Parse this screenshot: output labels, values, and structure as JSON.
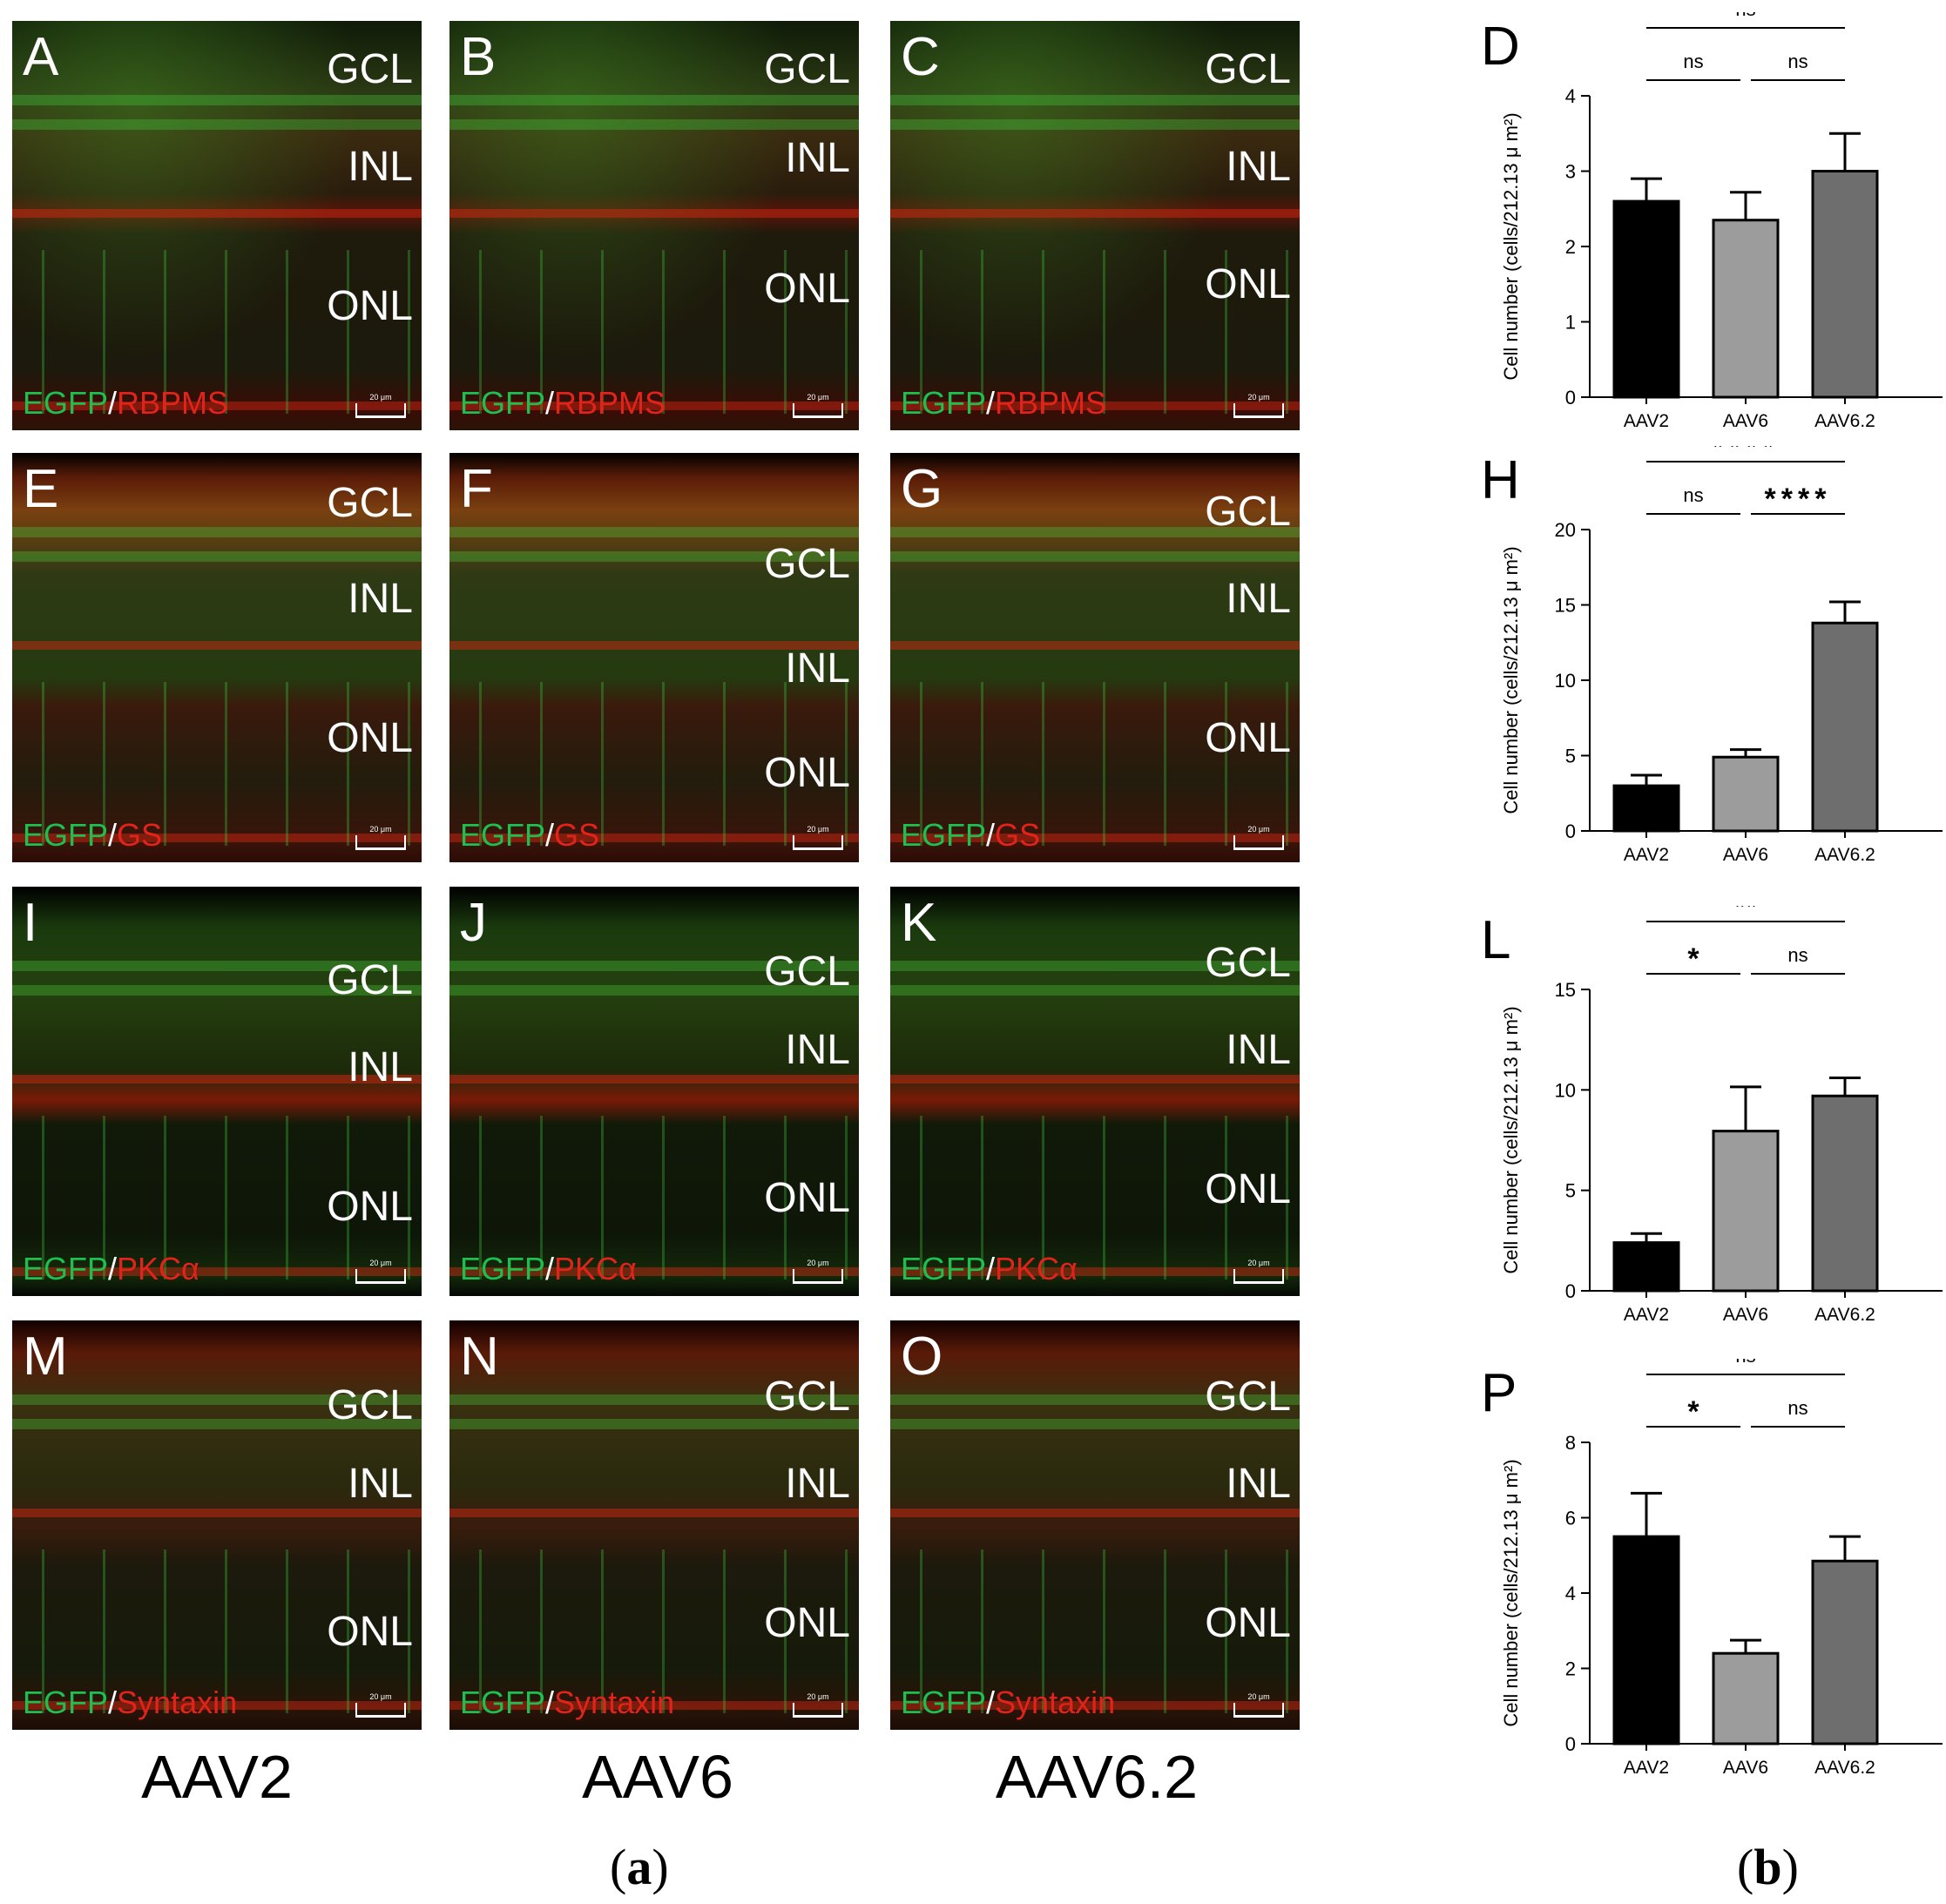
{
  "panels_a": {
    "columns": [
      "AAV2",
      "AAV6",
      "AAV6.2"
    ],
    "stain_prefix": "EGFP",
    "slash": "/",
    "scale_label": "20 μm",
    "rows": [
      {
        "markers": "RBPMS",
        "letters": [
          "A",
          "B",
          "C"
        ],
        "layers": [
          "GCL",
          "INL",
          "ONL"
        ]
      },
      {
        "markers": "GS",
        "letters": [
          "E",
          "F",
          "G"
        ],
        "layers": [
          "GCL",
          "INL",
          "ONL"
        ]
      },
      {
        "markers": "PKCα",
        "letters": [
          "I",
          "J",
          "K"
        ],
        "layers": [
          "GCL",
          "INL",
          "ONL"
        ]
      },
      {
        "markers": "Syntaxin",
        "letters": [
          "M",
          "N",
          "O"
        ],
        "layers": [
          "GCL",
          "INL",
          "ONL"
        ]
      }
    ]
  },
  "fig_labels": {
    "a": "a",
    "b": "b",
    "open": "(",
    "close": ")"
  },
  "colors": {
    "aav2": "#000000",
    "aav6": "#9c9c9c",
    "aav62": "#6e6e6e",
    "egfp": "#1fbf4f",
    "marker": "#e2231a"
  },
  "chart_data": [
    {
      "type": "bar",
      "letter": "D",
      "ylabel": "Cell number (cells/212.13 μ m²)",
      "categories": [
        "AAV2",
        "AAV6",
        "AAV6.2"
      ],
      "values": [
        2.6,
        2.35,
        3.0
      ],
      "errors": [
        0.3,
        0.37,
        0.5
      ],
      "ylim": [
        0,
        4
      ],
      "yticks": [
        "0",
        "1",
        "2",
        "3",
        "4"
      ],
      "sig": [
        {
          "label": "ns",
          "from": 0,
          "to": 2,
          "level": 2
        },
        {
          "label": "ns",
          "from": 0,
          "to": 1,
          "level": 1
        },
        {
          "label": "ns",
          "from": 1,
          "to": 2,
          "level": 1
        }
      ]
    },
    {
      "type": "bar",
      "letter": "H",
      "ylabel": "Cell number (cells/212.13 μ m²)",
      "categories": [
        "AAV2",
        "AAV6",
        "AAV6.2"
      ],
      "values": [
        3.0,
        4.9,
        13.8
      ],
      "errors": [
        0.7,
        0.5,
        1.4
      ],
      "ylim": [
        0,
        20
      ],
      "yticks": [
        "0",
        "5",
        "10",
        "15",
        "20"
      ],
      "sig": [
        {
          "label": "****",
          "from": 0,
          "to": 2,
          "level": 2
        },
        {
          "label": "ns",
          "from": 0,
          "to": 1,
          "level": 1
        },
        {
          "label": "****",
          "from": 1,
          "to": 2,
          "level": 1
        }
      ]
    },
    {
      "type": "bar",
      "letter": "L",
      "ylabel": "Cell number (cells/212.13 μ m²)",
      "categories": [
        "AAV2",
        "AAV6",
        "AAV6.2"
      ],
      "values": [
        2.4,
        7.95,
        9.7
      ],
      "errors": [
        0.45,
        2.2,
        0.9
      ],
      "ylim": [
        0,
        15
      ],
      "yticks": [
        "0",
        "5",
        "10",
        "15"
      ],
      "sig": [
        {
          "label": "**",
          "from": 0,
          "to": 2,
          "level": 2
        },
        {
          "label": "*",
          "from": 0,
          "to": 1,
          "level": 1
        },
        {
          "label": "ns",
          "from": 1,
          "to": 2,
          "level": 1
        }
      ]
    },
    {
      "type": "bar",
      "letter": "P",
      "ylabel": "Cell number (cells/212.13 μ m²)",
      "categories": [
        "AAV2",
        "AAV6",
        "AAV6.2"
      ],
      "values": [
        5.5,
        2.4,
        4.85
      ],
      "errors": [
        1.15,
        0.35,
        0.65
      ],
      "ylim": [
        0,
        8
      ],
      "yticks": [
        "0",
        "2",
        "4",
        "6",
        "8"
      ],
      "sig": [
        {
          "label": "ns",
          "from": 0,
          "to": 2,
          "level": 2
        },
        {
          "label": "*",
          "from": 0,
          "to": 1,
          "level": 1
        },
        {
          "label": "ns",
          "from": 1,
          "to": 2,
          "level": 1
        }
      ]
    }
  ]
}
